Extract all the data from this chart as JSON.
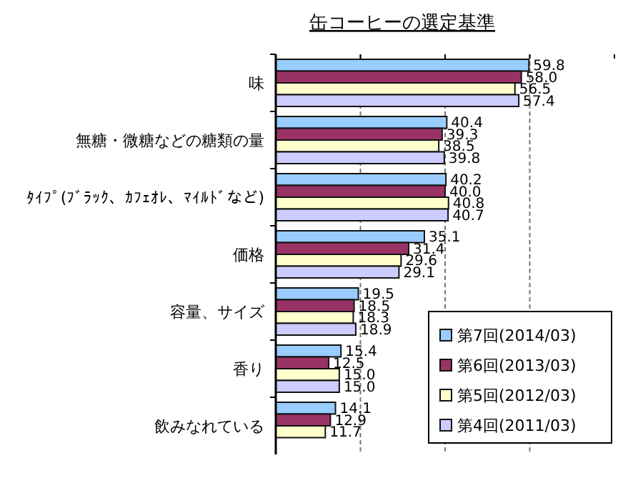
{
  "chart_data": {
    "type": "bar",
    "orientation": "horizontal",
    "title": "缶コーヒーの選定基準",
    "categories": [
      "味",
      "無糖・微糖などの糖類の量",
      "ﾀｲﾌﾟ(ﾌﾞﾗｯｸ、ｶﾌｪｵﾚ、ﾏｲﾙﾄﾞなど)",
      "価格",
      "容量、サイズ",
      "香り",
      "飲みなれている"
    ],
    "series": [
      {
        "name": "第7回(2014/03)",
        "color": "#99ccff",
        "values": [
          59.8,
          40.4,
          40.2,
          35.1,
          19.5,
          15.4,
          14.1
        ],
        "value_labels": [
          "59.8",
          "40.4",
          "40.2",
          "35.1",
          "19.5",
          "15.4",
          "14.1"
        ]
      },
      {
        "name": "第6回(2013/03)",
        "color": "#993366",
        "values": [
          58.0,
          39.3,
          40.0,
          31.4,
          18.5,
          12.5,
          12.9
        ],
        "value_labels": [
          "58.0",
          "39.3",
          "40.0",
          "31.4",
          "18.5",
          "12.5",
          "12.9"
        ]
      },
      {
        "name": "第5回(2012/03)",
        "color": "#ffffcc",
        "values": [
          56.5,
          38.5,
          40.8,
          29.6,
          18.3,
          15.0,
          11.7
        ],
        "value_labels": [
          "56.5",
          "38.5",
          "40.8",
          "29.6",
          "18.3",
          "15.0",
          "11.7"
        ]
      },
      {
        "name": "第4回(2011/03)",
        "color": "#ccccff",
        "values": [
          57.4,
          39.8,
          40.7,
          29.1,
          18.9,
          15.0,
          null
        ],
        "value_labels": [
          "57.4",
          "39.8",
          "40.7",
          "29.1",
          "18.9",
          "15.0",
          null
        ]
      }
    ],
    "xlim": [
      0,
      80
    ],
    "xticks": [
      {
        "value": 0,
        "label": null
      },
      {
        "value": 20,
        "label": null
      },
      {
        "value": 40,
        "label": null
      },
      {
        "value": 60,
        "label": null
      },
      {
        "value": 80,
        "label": null
      }
    ],
    "grid": "x",
    "legend": "bottom right"
  }
}
